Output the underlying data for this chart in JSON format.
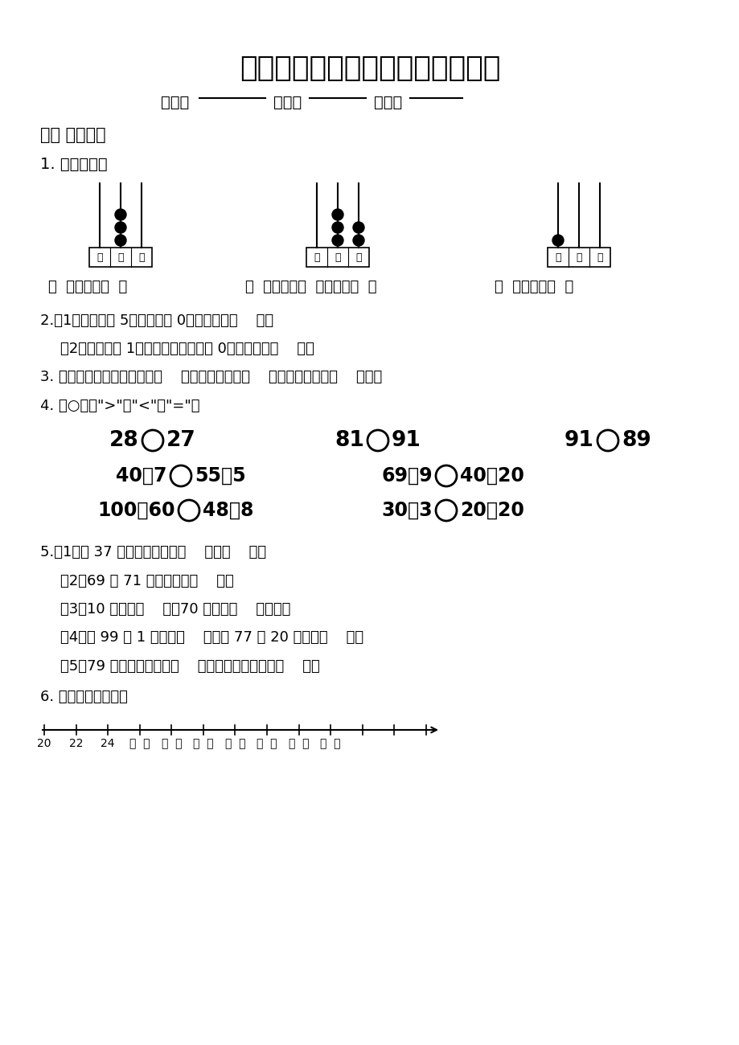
{
  "title": "北师大版一年级下册数学期中试卷",
  "subtitle_class": "班级：",
  "subtitle_blank1": "________",
  "subtitle_name": "姓名：",
  "subtitle_blank2": "________",
  "subtitle_score": "成绩：",
  "subtitle_blank3": "________",
  "section1": "一、 填空题。",
  "q1_label": "1. 看图填空。",
  "q1_text1": "（  ）个十是（  ）",
  "q1_text2": "（  ）个十和（  ）个一是（  ）",
  "q1_text3": "（  ）个百是（  ）",
  "q2_1": "2.（1）十位上是 5，个位上是 0，这个数是（    ）。",
  "q2_2": "（2）百位上是 1，十位和个位上都是 0，这个数是（    ）。",
  "q3": "3. 一个数从右边起第一位是（    ）位，第二位是（    ）位，第三位是（    ）位。",
  "q4_label": "4. 在○里填\">\"、\"<\"或\"=\"。",
  "q5_1": "5.（1）和 37 相邻的两个数是（    ）和（    ）。",
  "q5_2": "（2）69 和 71 中间的数是（    ）。",
  "q5_3": "（3）10 个十是（    ），70 里面有（    ）个十。",
  "q5_4": "（4）比 99 多 1 的数是（    ），比 77 少 20 的数是（    ）。",
  "q5_5": "（5）79 前面的一个数是（    ），后面的一个数是（    ）。",
  "q6_label": "6. 按数的顺序填写。",
  "bg_color": "#ffffff"
}
